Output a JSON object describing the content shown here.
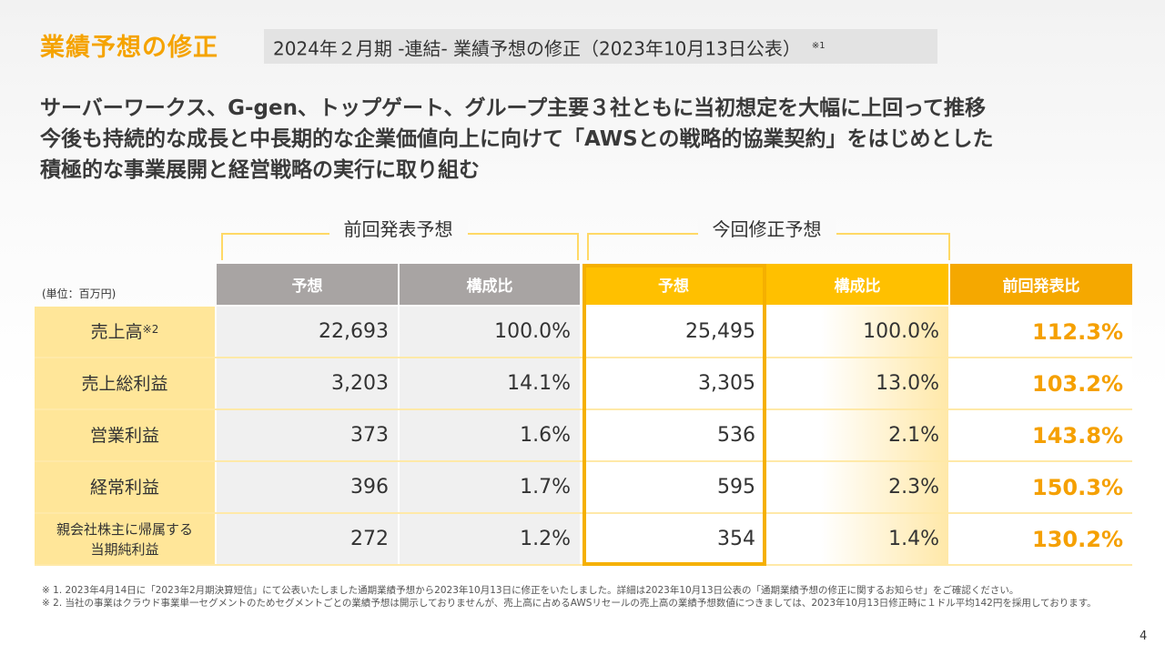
{
  "header": {
    "title": "業績予想の修正",
    "subtitle": "2024年２月期 -連結- 業績予想の修正（2023年10月13日公表）",
    "subtitle_note": "※1"
  },
  "lead": [
    "サーバーワークス、G-gen、トップゲート、グループ主要３社ともに当初想定を大幅に上回って推移",
    "今後も持続的な成長と中長期的な企業価値向上に向けて「AWSとの戦略的協業契約」をはじめとした",
    "積極的な事業展開と経営戦略の実行に取り組む"
  ],
  "table": {
    "unit": "(単位：百万円)",
    "groups": [
      "前回発表予想",
      "今回修正予想"
    ],
    "columns": [
      "予想",
      "構成比",
      "予想",
      "構成比",
      "前回発表比"
    ],
    "rows": [
      {
        "label": "売上高",
        "note": "※2",
        "values": [
          "22,693",
          "100.0%",
          "25,495",
          "100.0%",
          "112.3%"
        ]
      },
      {
        "label": "売上総利益",
        "values": [
          "3,203",
          "14.1%",
          "3,305",
          "13.0%",
          "103.2%"
        ]
      },
      {
        "label": "営業利益",
        "values": [
          "373",
          "1.6%",
          "536",
          "2.1%",
          "143.8%"
        ]
      },
      {
        "label": "経常利益",
        "values": [
          "396",
          "1.7%",
          "595",
          "2.3%",
          "150.3%"
        ]
      },
      {
        "label": "親会社株主に帰属する\n当期純利益",
        "values": [
          "272",
          "1.2%",
          "354",
          "1.4%",
          "130.2%"
        ]
      }
    ]
  },
  "notes": [
    "※ 1. 2023年4月14日に「2023年2月期決算短信」にて公表いたしました通期業績予想から2023年10月13日に修正をいたしました。詳細は2023年10月13日公表の「通期業績予想の修正に関するお知らせ」をご確認ください。",
    "※ 2. 当社の事業はクラウド事業単一セグメントのためセグメントごとの業績予想は開示しておりませんが、売上高に占めるAWSリセールの売上高の業績予想数値につきましては、2023年10月13日修正時に１ドル平均142円を採用しております。"
  ],
  "page_number": "4",
  "colors": {
    "accent": "#F5A300",
    "header_gray": "#A8A4A3",
    "header_yellow": "#FFC000",
    "header_orange": "#F5A800",
    "label_bg": "#FFE699"
  }
}
